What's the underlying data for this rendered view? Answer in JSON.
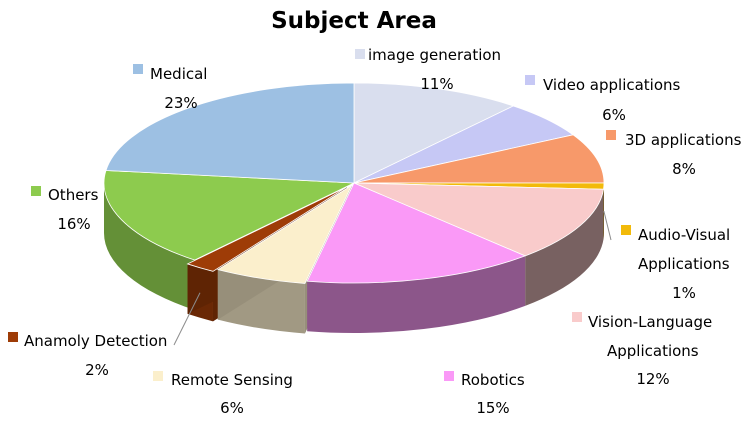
{
  "chart_data": {
    "type": "pie",
    "title": "Subject Area",
    "style": "3d-exploded",
    "categories": [
      "image generation",
      "Video applications",
      "3D applications",
      "Audio-Visual Applications",
      "Vision-Language Applications",
      "Robotics",
      "Remote Sensing",
      "Anamoly Detection",
      "Others",
      "Medical"
    ],
    "values": [
      11,
      6,
      8,
      1,
      12,
      15,
      6,
      2,
      16,
      23
    ],
    "value_labels": [
      "11%",
      "6%",
      "8%",
      "1%",
      "12%",
      "15%",
      "6%",
      "2%",
      "16%",
      "23%"
    ],
    "colors": [
      "#D9DEEE",
      "#C6C8F5",
      "#F7996A",
      "#F2BA0A",
      "#F9CBCB",
      "#FA99F7",
      "#FBEFCC",
      "#9E3C07",
      "#8DCB4E",
      "#9DC0E3"
    ],
    "label_lines": [
      [
        "image generation"
      ],
      [
        "Video applications"
      ],
      [
        "3D applications"
      ],
      [
        "Audio-Visual",
        "Applications"
      ],
      [
        "Vision-Language",
        "Applications"
      ],
      [
        "Robotics"
      ],
      [
        "Remote Sensing"
      ],
      [
        "Anamoly Detection"
      ],
      [
        "Others"
      ],
      [
        "Medical"
      ]
    ]
  }
}
